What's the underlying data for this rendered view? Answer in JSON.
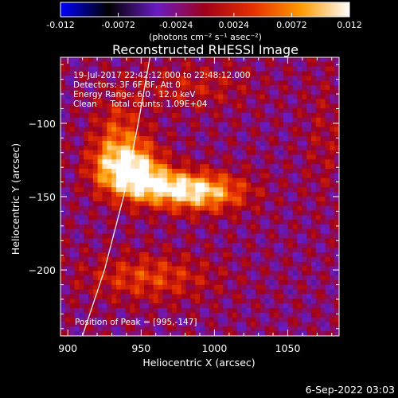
{
  "chart_data": {
    "type": "heatmap",
    "title": "Reconstructed RHESSI Image",
    "xlabel": "Heliocentric X (arcsec)",
    "ylabel": "Heliocentric Y (arcsec)",
    "xlim": [
      895,
      1085
    ],
    "ylim": [
      -245,
      -55
    ],
    "xticks": [
      900,
      950,
      1000,
      1050
    ],
    "yticks": [
      -100,
      -150,
      -200
    ],
    "colorbar": {
      "min": -0.012,
      "max": 0.012,
      "ticks": [
        "-0.012",
        "-0.0072",
        "-0.0024",
        "0.0024",
        "0.0072",
        "0.012"
      ],
      "label": "(photons cm⁻² s⁻¹ asec⁻²)",
      "colormap": [
        "#0000ff",
        "#000000",
        "#6a1bc4",
        "#a0001a",
        "#e63000",
        "#ff9a00",
        "#ffffff"
      ]
    },
    "annotations": [
      "19-Jul-2017 22:42:12.000 to 22:48:12.000",
      "Detectors: 3F 6F 8F, Att 0",
      "Energy Range: 6.0 - 12.0 keV",
      "Clean     Total counts: 1.09E+04"
    ],
    "peak_label": "Position of Peak = [995,-147]",
    "peak": [
      995,
      -147
    ],
    "grid": false,
    "sources": [
      {
        "x": 945,
        "y": -132,
        "sx": 14,
        "sy": 13,
        "amp": 0.0118
      },
      {
        "x": 990,
        "y": -147,
        "sx": 22,
        "sy": 9,
        "amp": 0.0118
      },
      {
        "x": 962,
        "y": -142,
        "sx": 18,
        "sy": 8,
        "amp": 0.0065
      },
      {
        "x": 935,
        "y": -108,
        "sx": 12,
        "sy": 18,
        "amp": 0.0056
      },
      {
        "x": 955,
        "y": -205,
        "sx": 30,
        "sy": 11,
        "amp": 0.0058
      },
      {
        "x": 925,
        "y": -130,
        "sx": 10,
        "sy": 12,
        "amp": 0.0045
      },
      {
        "x": 985,
        "y": -75,
        "sx": 28,
        "sy": 11,
        "amp": 0.0034
      },
      {
        "x": 1075,
        "y": -110,
        "sx": 10,
        "sy": 30,
        "amp": 0.0022
      }
    ],
    "limb": [
      [
        910,
        -245
      ],
      [
        925,
        -200
      ],
      [
        938,
        -150
      ],
      [
        948,
        -100
      ],
      [
        956,
        -55
      ]
    ]
  },
  "footer": {
    "date": "6-Sep-2022 03:03"
  }
}
